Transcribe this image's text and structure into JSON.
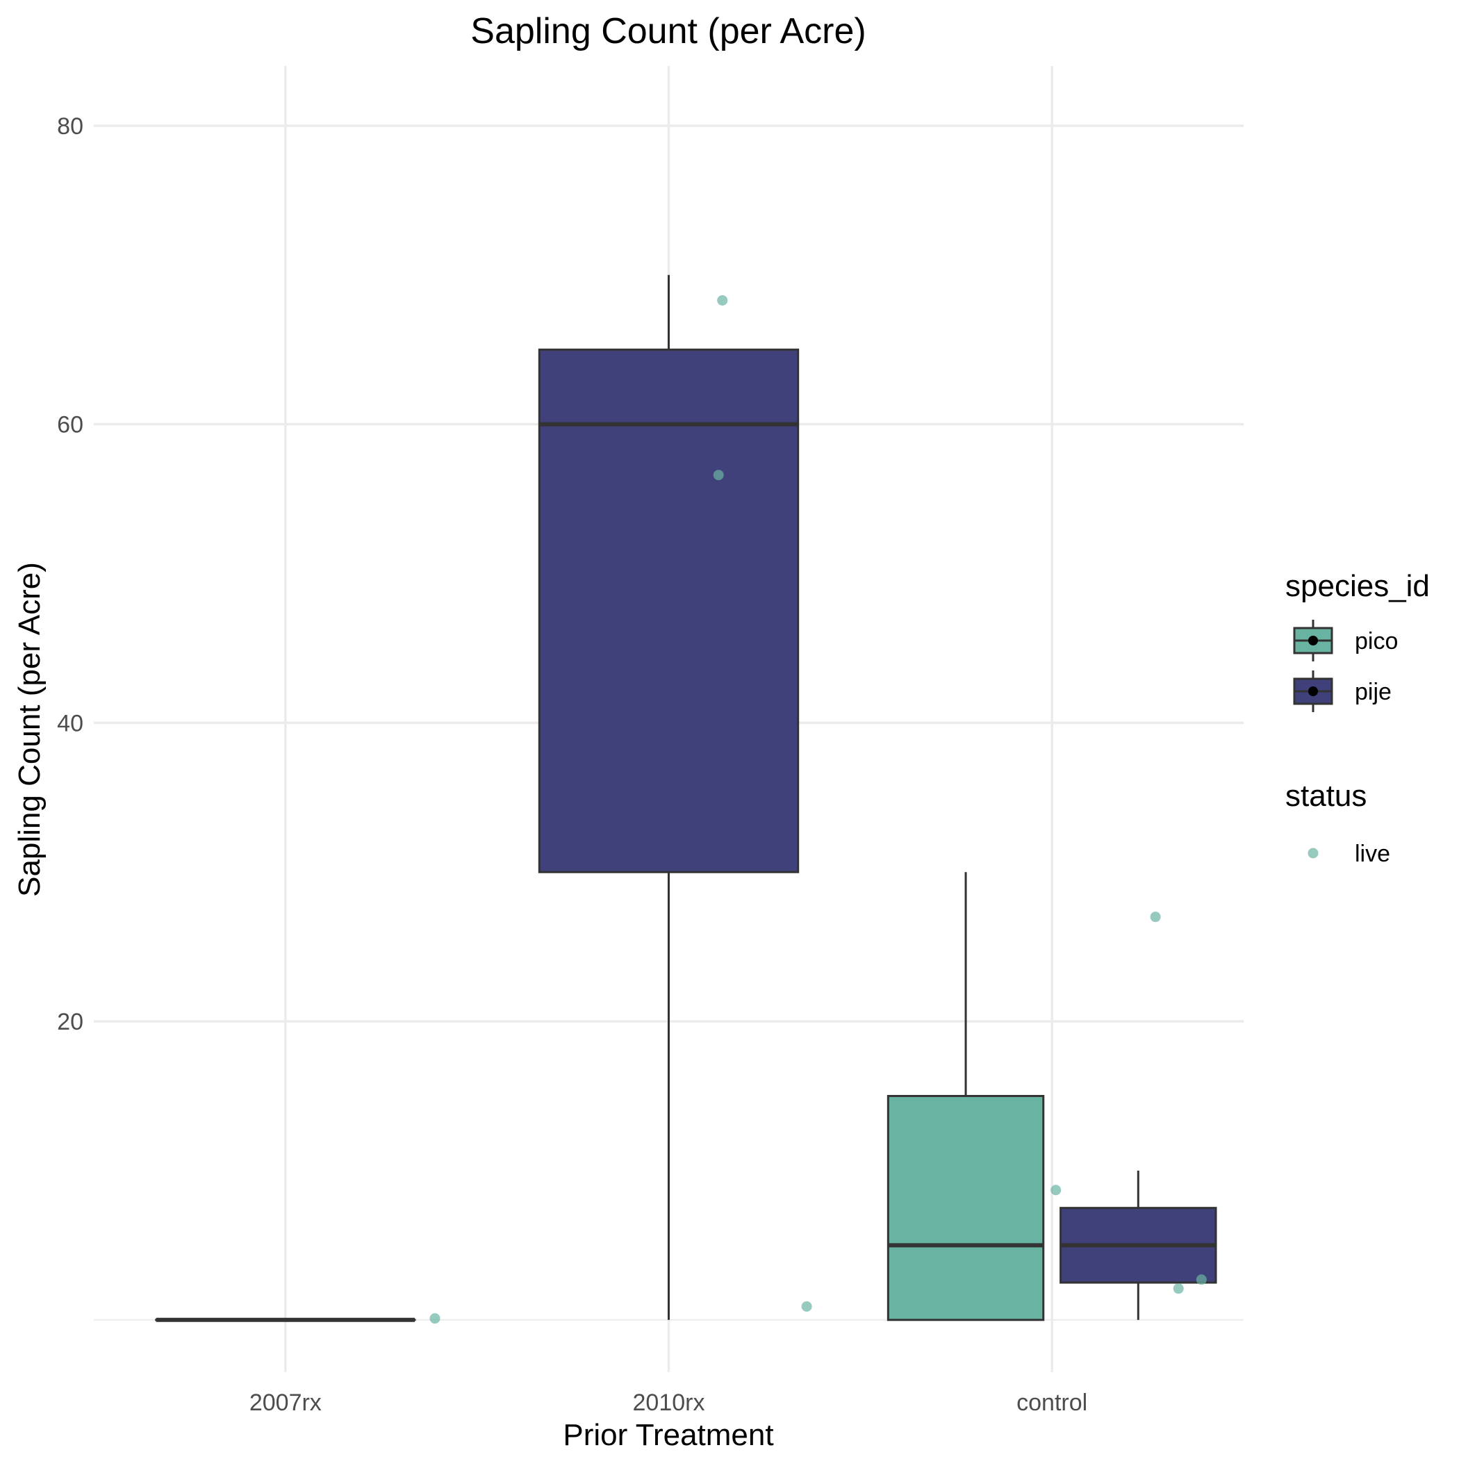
{
  "chart_data": {
    "type": "box",
    "title": "Sapling Count (per Acre)",
    "xlabel": "Prior Treatment",
    "ylabel": "Sapling Count (per Acre)",
    "categories": [
      "2007rx",
      "2010rx",
      "control"
    ],
    "ylim": [
      -3.5,
      84
    ],
    "yticks": [
      20,
      40,
      60,
      80
    ],
    "grid": true,
    "legend_position": "right",
    "series": [
      {
        "name": "pico",
        "color": "#69B3A2",
        "boxes": [
          {
            "category": "control",
            "min": 0,
            "q1": 0,
            "median": 5,
            "q3": 15,
            "max": 30
          }
        ]
      },
      {
        "name": "pije",
        "color": "#40407A",
        "boxes": [
          {
            "category": "2007rx",
            "min": 0,
            "q1": 0,
            "median": 0,
            "q3": 0,
            "max": 0
          },
          {
            "category": "2010rx",
            "min": 0,
            "q1": 30,
            "median": 60,
            "q3": 65,
            "max": 70
          },
          {
            "category": "control",
            "min": 0,
            "q1": 2.5,
            "median": 5,
            "q3": 7.5,
            "max": 10
          }
        ]
      }
    ],
    "points": {
      "name": "live",
      "color": "#69B3A2",
      "data": [
        {
          "category": "2007rx",
          "offset": 0.39,
          "y": 0.1
        },
        {
          "category": "2010rx",
          "offset": 0.14,
          "y": 68.3
        },
        {
          "category": "2010rx",
          "offset": 0.13,
          "y": 56.6
        },
        {
          "category": "2010rx",
          "offset": 0.36,
          "y": 0.9
        },
        {
          "category": "control",
          "offset": 0.27,
          "y": 27.0
        },
        {
          "category": "control",
          "offset": 0.01,
          "y": 8.7
        },
        {
          "category": "control",
          "offset": 0.33,
          "y": 2.1
        },
        {
          "category": "control",
          "offset": 0.39,
          "y": 2.7
        }
      ]
    }
  },
  "legend": {
    "species_title": "species_id",
    "species_items": [
      {
        "label": "pico",
        "color": "#69B3A2"
      },
      {
        "label": "pije",
        "color": "#40407A"
      }
    ],
    "status_title": "status",
    "status_items": [
      {
        "label": "live",
        "color": "#69B3A2"
      }
    ]
  },
  "colors": {
    "grid": "#EBEBEB",
    "outline": "#333333",
    "text": "#4D4D4D"
  }
}
